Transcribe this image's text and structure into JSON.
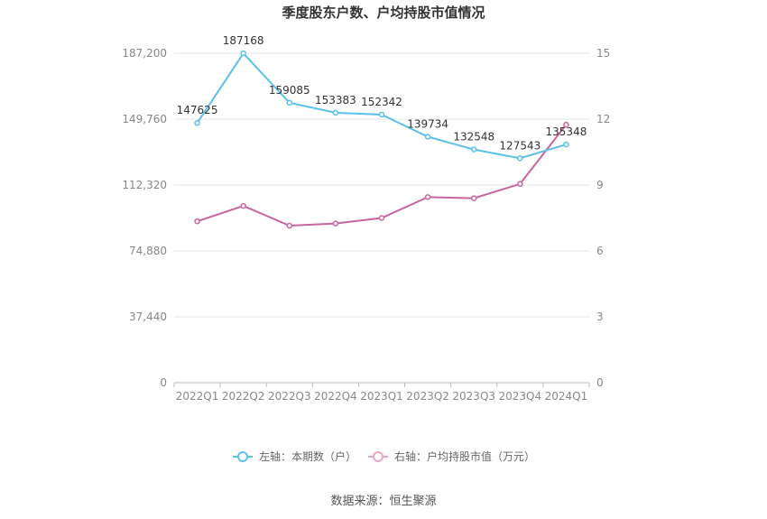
{
  "chart_data": {
    "type": "line",
    "title": "季度股东户数、户均持股市值情况",
    "categories": [
      "2022Q1",
      "2022Q2",
      "2022Q3",
      "2022Q4",
      "2023Q1",
      "2023Q2",
      "2023Q3",
      "2023Q4",
      "2024Q1"
    ],
    "y_left": {
      "ticks": [
        "0",
        "37,440",
        "74,880",
        "112,320",
        "149,760",
        "187,200"
      ],
      "ylim": [
        0,
        187200
      ]
    },
    "y_right": {
      "ticks": [
        "0",
        "3",
        "6",
        "9",
        "12",
        "15"
      ],
      "ylim": [
        0,
        15
      ]
    },
    "series": [
      {
        "name": "左轴：本期数（户）",
        "axis": "left",
        "color": "#5bc0eb",
        "values": [
          147625,
          187168,
          159085,
          153383,
          152342,
          139734,
          132548,
          127543,
          135348
        ],
        "labels": [
          "147625",
          "187168",
          "159085",
          "153383",
          "152342",
          "139734",
          "132548",
          "127543",
          "135348"
        ]
      },
      {
        "name": "右轴：户均持股市值（万元）",
        "axis": "right",
        "color": "#c8649e",
        "values": [
          7.35,
          8.05,
          7.15,
          7.25,
          7.5,
          8.45,
          8.4,
          9.05,
          11.75
        ]
      }
    ],
    "grid": true,
    "legend_position": "bottom",
    "source": "数据来源：恒生聚源"
  }
}
